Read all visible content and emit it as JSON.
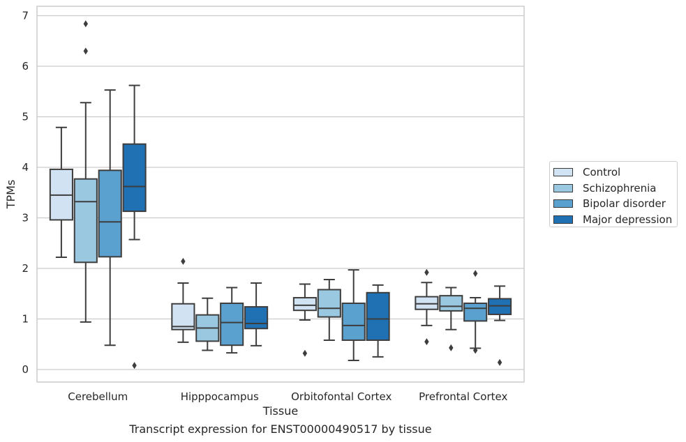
{
  "caption": "Transcript expression for ENST00000490517 by tissue",
  "chart_data": {
    "type": "boxplot",
    "title": "",
    "xlabel": "Tissue",
    "ylabel": "TPMs",
    "ylim": [
      -0.25,
      7.2
    ],
    "yticks": [
      0,
      1,
      2,
      3,
      4,
      5,
      6,
      7
    ],
    "grid": true,
    "legend_position": "right",
    "categories": [
      "Cerebellum",
      "Hipppocampus",
      "Orbitofontal Cortex",
      "Prefrontal Cortex"
    ],
    "series": [
      {
        "name": "Control",
        "color": "#d1e2f2",
        "boxes": [
          {
            "whislo": 2.22,
            "q1": 2.96,
            "med": 3.45,
            "q3": 3.96,
            "whishi": 4.79,
            "fliers": []
          },
          {
            "whislo": 0.54,
            "q1": 0.79,
            "med": 0.85,
            "q3": 1.3,
            "whishi": 1.71,
            "fliers": [
              2.14
            ]
          },
          {
            "whislo": 0.98,
            "q1": 1.17,
            "med": 1.27,
            "q3": 1.42,
            "whishi": 1.69,
            "fliers": [
              0.32
            ]
          },
          {
            "whislo": 0.87,
            "q1": 1.19,
            "med": 1.3,
            "q3": 1.44,
            "whishi": 1.72,
            "fliers": [
              1.92,
              0.55
            ]
          }
        ]
      },
      {
        "name": "Schizophrenia",
        "color": "#9ac8e0",
        "boxes": [
          {
            "whislo": 0.94,
            "q1": 2.12,
            "med": 3.32,
            "q3": 3.77,
            "whishi": 5.28,
            "fliers": [
              6.3,
              6.84
            ]
          },
          {
            "whislo": 0.38,
            "q1": 0.56,
            "med": 0.82,
            "q3": 1.08,
            "whishi": 1.41,
            "fliers": []
          },
          {
            "whislo": 0.58,
            "q1": 1.04,
            "med": 1.21,
            "q3": 1.58,
            "whishi": 1.78,
            "fliers": []
          },
          {
            "whislo": 0.79,
            "q1": 1.16,
            "med": 1.25,
            "q3": 1.46,
            "whishi": 1.62,
            "fliers": [
              0.43
            ]
          }
        ]
      },
      {
        "name": "Bipolar disorder",
        "color": "#5aa1cf",
        "boxes": [
          {
            "whislo": 0.48,
            "q1": 2.23,
            "med": 2.92,
            "q3": 3.94,
            "whishi": 5.53,
            "fliers": []
          },
          {
            "whislo": 0.33,
            "q1": 0.48,
            "med": 0.93,
            "q3": 1.31,
            "whishi": 1.62,
            "fliers": []
          },
          {
            "whislo": 0.18,
            "q1": 0.58,
            "med": 0.87,
            "q3": 1.31,
            "whishi": 1.97,
            "fliers": []
          },
          {
            "whislo": 0.42,
            "q1": 0.96,
            "med": 1.21,
            "q3": 1.31,
            "whishi": 1.42,
            "fliers": [
              1.9,
              0.38
            ]
          }
        ]
      },
      {
        "name": "Major depression",
        "color": "#2070b4",
        "boxes": [
          {
            "whislo": 2.57,
            "q1": 3.13,
            "med": 3.62,
            "q3": 4.46,
            "whishi": 5.62,
            "fliers": [
              0.08
            ]
          },
          {
            "whislo": 0.47,
            "q1": 0.81,
            "med": 0.91,
            "q3": 1.24,
            "whishi": 1.71,
            "fliers": []
          },
          {
            "whislo": 0.25,
            "q1": 0.58,
            "med": 1.0,
            "q3": 1.52,
            "whishi": 1.67,
            "fliers": []
          },
          {
            "whislo": 0.97,
            "q1": 1.09,
            "med": 1.26,
            "q3": 1.4,
            "whishi": 1.65,
            "fliers": [
              0.14
            ]
          }
        ]
      }
    ]
  }
}
